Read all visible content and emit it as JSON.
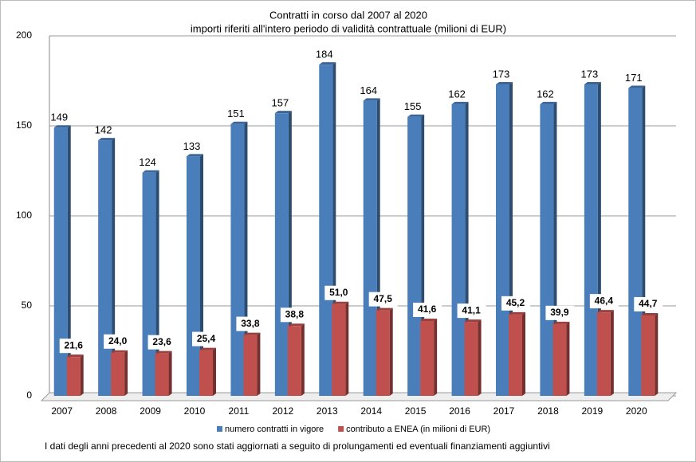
{
  "chart_data": {
    "type": "bar",
    "title": "Contratti in corso dal 2007 al 2020",
    "subtitle": "importi riferiti all'intero periodo di validità contrattuale  (milioni di EUR)",
    "note": "I dati degli  anni precedenti al 2020 sono stati aggiornati a seguito di prolungamenti  ed eventuali finanziamenti aggiuntivi",
    "categories": [
      "2007",
      "2008",
      "2009",
      "2010",
      "2011",
      "2012",
      "2013",
      "2014",
      "2015",
      "2016",
      "2017",
      "2018",
      "2019",
      "2020"
    ],
    "series": [
      {
        "name": "numero contratti  in vigore",
        "color": "#4a7ebb",
        "values": [
          149,
          142,
          124,
          133,
          151,
          157,
          184,
          164,
          155,
          162,
          173,
          162,
          173,
          171
        ]
      },
      {
        "name": "contributo a ENEA (in milioni di EUR)",
        "color": "#c0504d",
        "values": [
          21.6,
          24.0,
          23.6,
          25.4,
          33.8,
          38.8,
          51.0,
          47.5,
          41.6,
          41.1,
          45.2,
          39.9,
          46.4,
          44.7
        ],
        "value_labels": [
          "21,6",
          "24,0",
          "23,6",
          "25,4",
          "33,8",
          "38,8",
          "51,0",
          "47,5",
          "41,6",
          "41,1",
          "45,2",
          "39,9",
          "46,4",
          "44,7"
        ]
      }
    ],
    "ylim": [
      0,
      200
    ],
    "yticks": [
      0,
      50,
      100,
      150,
      200
    ],
    "grid": true,
    "legend": "bottom"
  }
}
